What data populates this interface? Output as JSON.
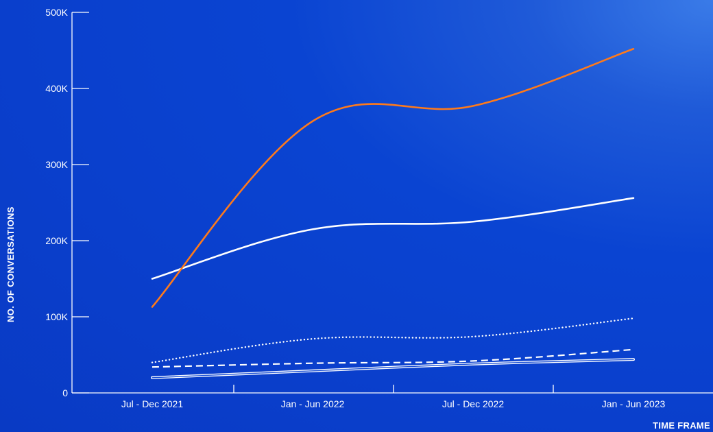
{
  "chart_data": {
    "type": "line",
    "title": "",
    "xlabel": "TIME FRAME",
    "ylabel": "NO. OF CONVERSATIONS",
    "categories": [
      "Jul - Dec 2021",
      "Jan - Jun 2022",
      "Jul - Dec 2022",
      "Jan - Jun 2023"
    ],
    "yticks": [
      {
        "value": 0,
        "label": "0"
      },
      {
        "value": 100000,
        "label": "100K"
      },
      {
        "value": 200000,
        "label": "200K"
      },
      {
        "value": 300000,
        "label": "300K"
      },
      {
        "value": 400000,
        "label": "400K"
      },
      {
        "value": 500000,
        "label": "500K"
      }
    ],
    "ylim": [
      0,
      500000
    ],
    "grid": false,
    "legend": "none",
    "series": [
      {
        "values": [
          113000,
          357000,
          377000,
          452000
        ],
        "color": "#ff7a1a",
        "style": "solid"
      },
      {
        "values": [
          150000,
          215000,
          225000,
          256000
        ],
        "color": "#ffffff",
        "style": "solid"
      },
      {
        "values": [
          40000,
          71000,
          74000,
          98000
        ],
        "color": "#ffffff",
        "style": "dotted"
      },
      {
        "values": [
          34000,
          39000,
          42000,
          57000
        ],
        "color": "#ffffff",
        "style": "dashed"
      },
      {
        "values": [
          20000,
          29000,
          38000,
          44000
        ],
        "color": "#ffffff",
        "style": "double"
      }
    ]
  }
}
